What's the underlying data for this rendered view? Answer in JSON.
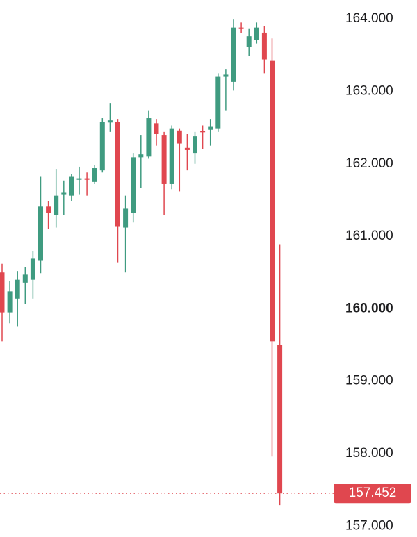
{
  "chart_data": {
    "type": "candlestick",
    "up_color": "#3f9b80",
    "down_color": "#e0474f",
    "ylim": [
      156.85,
      164.26
    ],
    "yticks": [
      {
        "value": 164,
        "label": "164.000"
      },
      {
        "value": 163,
        "label": "163.000"
      },
      {
        "value": 162,
        "label": "162.000"
      },
      {
        "value": 161,
        "label": "161.000"
      },
      {
        "value": 160,
        "label": "160.000"
      },
      {
        "value": 159,
        "label": "159.000"
      },
      {
        "value": 158,
        "label": "158.000"
      },
      {
        "value": 157,
        "label": "157.000"
      }
    ],
    "last_price": {
      "value": 157.452,
      "label": "157.452"
    },
    "open": [
      160.5,
      159.95,
      160.14,
      160.36,
      160.4,
      160.67,
      161.41,
      161.29,
      161.58,
      161.56,
      161.78,
      161.8,
      161.75,
      161.91,
      162.57,
      162.58,
      161.12,
      161.32,
      162.09,
      162.1,
      162.56,
      162.39,
      161.72,
      162.46,
      162.22,
      162.15,
      162.45,
      162.47,
      162.49,
      163.2,
      163.13,
      163.88,
      163.61,
      163.71,
      163.81,
      163.42,
      159.5
    ],
    "high": [
      160.62,
      160.38,
      160.52,
      160.57,
      160.79,
      161.82,
      161.48,
      161.93,
      161.77,
      161.86,
      161.96,
      161.88,
      161.98,
      162.63,
      162.84,
      162.61,
      161.56,
      162.15,
      162.39,
      162.73,
      162.61,
      162.44,
      162.53,
      162.49,
      162.41,
      162.44,
      162.53,
      162.61,
      163.25,
      163.3,
      163.99,
      163.95,
      163.86,
      163.95,
      163.9,
      163.73,
      160.89
    ],
    "low": [
      159.55,
      159.8,
      159.76,
      160.07,
      160.14,
      160.49,
      161.1,
      161.12,
      161.29,
      161.48,
      161.58,
      161.56,
      161.72,
      161.88,
      162.44,
      160.64,
      160.5,
      161.19,
      161.67,
      162.07,
      162.25,
      161.29,
      161.65,
      161.62,
      161.91,
      162.0,
      162.2,
      162.25,
      162.44,
      162.73,
      163.01,
      163.8,
      163.49,
      163.66,
      163.25,
      157.96,
      157.29
    ],
    "close": [
      159.95,
      160.24,
      160.4,
      160.47,
      160.69,
      161.41,
      161.32,
      161.56,
      161.6,
      161.82,
      161.8,
      161.78,
      161.94,
      162.58,
      162.6,
      161.13,
      161.38,
      162.09,
      162.13,
      162.63,
      162.41,
      161.72,
      162.49,
      162.28,
      162.19,
      162.38,
      162.44,
      162.51,
      163.2,
      163.23,
      163.88,
      163.86,
      163.76,
      163.88,
      163.44,
      159.55,
      157.452
    ]
  }
}
